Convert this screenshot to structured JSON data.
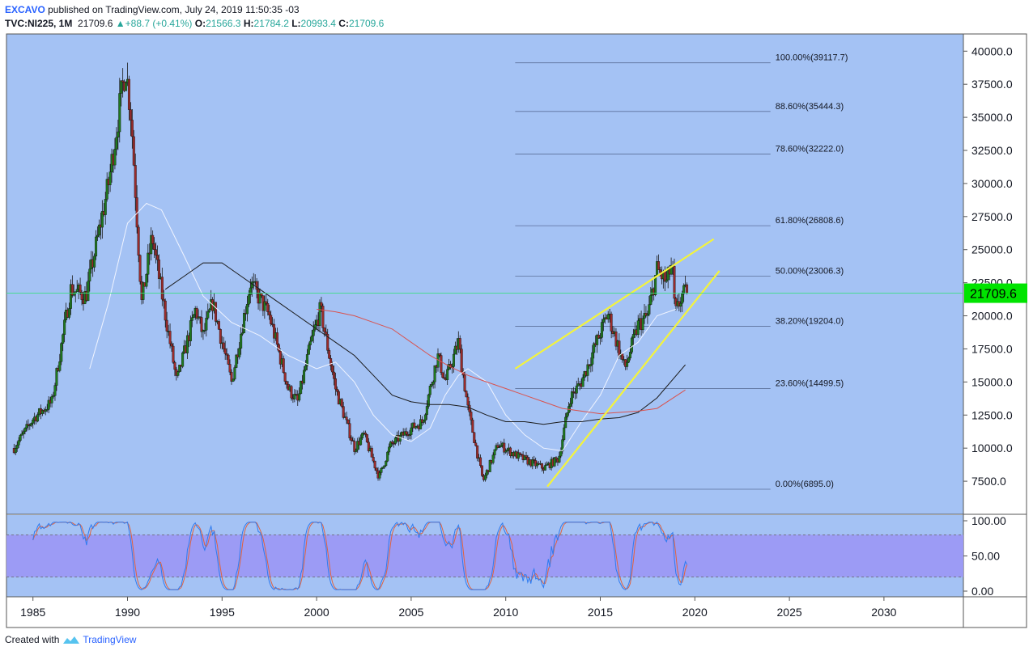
{
  "header": {
    "author": "EXCAVO",
    "published": " published on TradingView.com, July 24, 2019 11:50:35 -03",
    "symbol": "TVC:NI225, 1M",
    "price": "21709.6",
    "change": "+88.7 (+0.41%)",
    "o_label": "O:",
    "o": "21566.3",
    "h_label": "H:",
    "h": "21784.2",
    "l_label": "L:",
    "l": "20993.4",
    "c_label": "C:",
    "c": "21709.6"
  },
  "footer": {
    "created": "Created with",
    "brand": "TradingView"
  },
  "colors": {
    "background": "#a4c2f4",
    "up": "#1f7a1f",
    "down": "#9b2b2b",
    "trendline": "#f4f43a",
    "ma_white": "#f0f4ff",
    "ma_black": "#1b1b1b",
    "ma_red": "#d9534f",
    "price_line": "#3ddc84",
    "price_box": "#00e400",
    "stoch_band": "#9b97f5",
    "stoch_k": "#2e7bf0",
    "stoch_d": "#e0623f"
  },
  "chart_data": {
    "type": "candlestick",
    "x_range": [
      1983.6,
      2034.2
    ],
    "y_range": [
      5000,
      41300
    ],
    "x_ticks": [
      1985,
      1990,
      1995,
      2000,
      2005,
      2010,
      2015,
      2020,
      2025,
      2030
    ],
    "x_tick_labels": [
      "1985",
      "1990",
      "1995",
      "2000",
      "2005",
      "2010",
      "2015",
      "2020",
      "2025",
      "2030"
    ],
    "y_ticks": [
      7500,
      10000,
      12500,
      15000,
      17500,
      20000,
      22500,
      25000,
      27500,
      30000,
      32500,
      35000,
      37500,
      40000
    ],
    "y_tick_labels": [
      "7500.0",
      "10000.0",
      "12500.0",
      "15000.0",
      "17500.0",
      "20000.0",
      "22500.0",
      "25000.0",
      "27500.0",
      "30000.0",
      "32500.0",
      "35000.0",
      "37500.0",
      "40000.0"
    ],
    "last_price": 21709.6,
    "last_price_label": "21709.6",
    "anchors": [
      [
        1984.0,
        10000
      ],
      [
        1985.0,
        12200
      ],
      [
        1986.0,
        13500
      ],
      [
        1987.0,
        22000
      ],
      [
        1987.8,
        21500
      ],
      [
        1989.0,
        30000
      ],
      [
        1989.9,
        38900
      ],
      [
        1990.2,
        35000
      ],
      [
        1990.75,
        21000
      ],
      [
        1991.3,
        26000
      ],
      [
        1992.6,
        15000
      ],
      [
        1993.6,
        20500
      ],
      [
        1994.0,
        18500
      ],
      [
        1994.5,
        21000
      ],
      [
        1995.5,
        15000
      ],
      [
        1996.5,
        22500
      ],
      [
        1997.5,
        20000
      ],
      [
        1998.5,
        14500
      ],
      [
        1999.0,
        13500
      ],
      [
        1999.7,
        18000
      ],
      [
        2000.2,
        20500
      ],
      [
        2001.0,
        14500
      ],
      [
        2002.0,
        10000
      ],
      [
        2002.5,
        11000
      ],
      [
        2003.3,
        7800
      ],
      [
        2003.9,
        10200
      ],
      [
        2005.0,
        11500
      ],
      [
        2005.6,
        12000
      ],
      [
        2006.4,
        17000
      ],
      [
        2006.8,
        15000
      ],
      [
        2007.5,
        18000
      ],
      [
        2008.0,
        13000
      ],
      [
        2008.8,
        7500
      ],
      [
        2009.6,
        10300
      ],
      [
        2010.5,
        9500
      ],
      [
        2011.2,
        9000
      ],
      [
        2012.0,
        8500
      ],
      [
        2012.8,
        9200
      ],
      [
        2013.4,
        13800
      ],
      [
        2014.0,
        15000
      ],
      [
        2015.4,
        20200
      ],
      [
        2016.3,
        16000
      ],
      [
        2017.0,
        19300
      ],
      [
        2017.5,
        20000
      ],
      [
        2018.0,
        23500
      ],
      [
        2018.5,
        22500
      ],
      [
        2018.8,
        24000
      ],
      [
        2018.95,
        20000
      ],
      [
        2019.3,
        21500
      ],
      [
        2019.55,
        21709
      ]
    ],
    "moving_averages": [
      {
        "color": "ma_white",
        "points": [
          [
            1988.0,
            16000
          ],
          [
            1989.0,
            21000
          ],
          [
            1990.0,
            27000
          ],
          [
            1991.0,
            28500
          ],
          [
            1991.8,
            28000
          ],
          [
            1993.0,
            24500
          ],
          [
            1994.0,
            21500
          ],
          [
            1995.5,
            19500
          ],
          [
            1997.0,
            18500
          ],
          [
            1998.5,
            17000
          ],
          [
            2000.0,
            16000
          ],
          [
            2001.0,
            16500
          ],
          [
            2002.0,
            15000
          ],
          [
            2003.0,
            12500
          ],
          [
            2004.0,
            11000
          ],
          [
            2005.0,
            10500
          ],
          [
            2006.0,
            11500
          ],
          [
            2006.8,
            14000
          ],
          [
            2007.5,
            15500
          ],
          [
            2008.0,
            16000
          ],
          [
            2009.0,
            15000
          ],
          [
            2010.0,
            12500
          ],
          [
            2011.0,
            11000
          ],
          [
            2012.0,
            10000
          ],
          [
            2013.0,
            9800
          ],
          [
            2014.0,
            12000
          ],
          [
            2015.0,
            14000
          ],
          [
            2016.0,
            17000
          ],
          [
            2017.0,
            18000
          ],
          [
            2018.0,
            20000
          ],
          [
            2019.0,
            20500
          ]
        ]
      },
      {
        "color": "ma_black",
        "points": [
          [
            1992.0,
            22000
          ],
          [
            1993.0,
            23000
          ],
          [
            1994.0,
            24000
          ],
          [
            1995.0,
            24000
          ],
          [
            1996.0,
            23000
          ],
          [
            1997.0,
            22000
          ],
          [
            1998.0,
            21000
          ],
          [
            1999.0,
            20000
          ],
          [
            2000.0,
            19000
          ],
          [
            2001.0,
            18000
          ],
          [
            2002.0,
            17000
          ],
          [
            2003.0,
            15500
          ],
          [
            2004.0,
            14000
          ],
          [
            2005.0,
            13500
          ],
          [
            2006.0,
            13300
          ],
          [
            2007.0,
            13300
          ],
          [
            2008.0,
            13100
          ],
          [
            2009.0,
            12500
          ],
          [
            2010.0,
            12000
          ],
          [
            2011.0,
            12000
          ],
          [
            2012.0,
            11800
          ],
          [
            2013.0,
            12000
          ],
          [
            2014.0,
            12000
          ],
          [
            2015.0,
            12200
          ],
          [
            2016.0,
            12300
          ],
          [
            2017.0,
            12700
          ],
          [
            2018.0,
            13800
          ],
          [
            2019.5,
            16300
          ]
        ]
      },
      {
        "color": "ma_red",
        "points": [
          [
            2000.0,
            20500
          ],
          [
            2001.0,
            20300
          ],
          [
            2002.0,
            20000
          ],
          [
            2003.0,
            19500
          ],
          [
            2004.0,
            19000
          ],
          [
            2005.0,
            18000
          ],
          [
            2006.0,
            17000
          ],
          [
            2007.0,
            16200
          ],
          [
            2008.0,
            15500
          ],
          [
            2009.0,
            15000
          ],
          [
            2010.0,
            14500
          ],
          [
            2011.0,
            14000
          ],
          [
            2012.0,
            13500
          ],
          [
            2013.0,
            13000
          ],
          [
            2014.0,
            12800
          ],
          [
            2015.0,
            12600
          ],
          [
            2016.0,
            12700
          ],
          [
            2017.0,
            12800
          ],
          [
            2018.0,
            13000
          ],
          [
            2019.5,
            14400
          ]
        ]
      }
    ],
    "trendlines": [
      [
        [
          2010.5,
          16000
        ],
        [
          2021.0,
          25800
        ]
      ],
      [
        [
          2012.2,
          7100
        ],
        [
          2021.3,
          23400
        ]
      ]
    ],
    "fibonacci": {
      "x_start": 2010.5,
      "x_end": 2024.0,
      "levels": [
        {
          "value": 39117.7,
          "label": "100.00%(39117.7)"
        },
        {
          "value": 35444.3,
          "label": "88.60%(35444.3)"
        },
        {
          "value": 32222.0,
          "label": "78.60%(32222.0)"
        },
        {
          "value": 26808.6,
          "label": "61.80%(26808.6)"
        },
        {
          "value": 23006.3,
          "label": "50.00%(23006.3)"
        },
        {
          "value": 19204.0,
          "label": "38.20%(19204.0)"
        },
        {
          "value": 14499.5,
          "label": "23.60%(14499.5)"
        },
        {
          "value": 6895.0,
          "label": "0.00%(6895.0)"
        }
      ]
    },
    "stochastic": {
      "y_range": [
        0,
        100
      ],
      "y_ticks": [
        0,
        50,
        100
      ],
      "y_tick_labels": [
        "0.00",
        "50.00",
        "100.00"
      ],
      "band": [
        20,
        80
      ],
      "from": 1985.0,
      "to": 2019.55
    }
  }
}
